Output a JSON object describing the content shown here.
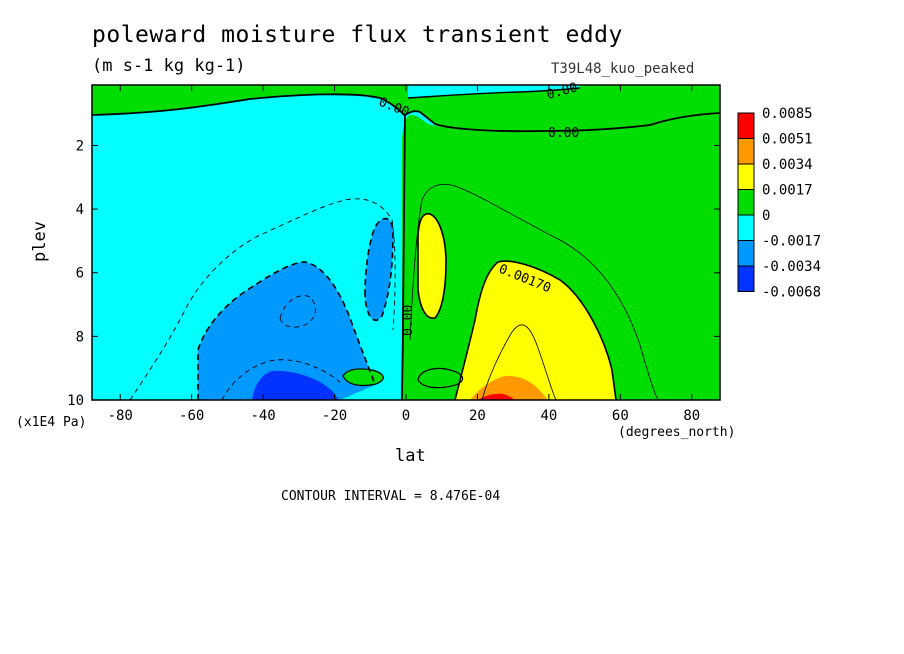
{
  "chart_data": {
    "type": "heatmap",
    "title": "poleward moisture flux transient eddy",
    "subtitle": "(m s-1 kg kg-1)",
    "run_label": "T39L48_kuo_peaked",
    "xlabel": "lat",
    "ylabel": "plev",
    "x_units": "(degrees_north)",
    "y_units": "(x1E4 Pa)",
    "xlim": [
      -87.9,
      87.9
    ],
    "ylim": [
      10,
      0.1
    ],
    "x_ticks": [
      "-80",
      "-60",
      "-40",
      "-20",
      "0",
      "20",
      "40",
      "60",
      "80"
    ],
    "y_ticks": [
      "2",
      "4",
      "6",
      "8",
      "10"
    ],
    "contour_interval_text": "CONTOUR INTERVAL = 8.476E-04",
    "contour_labels": [
      "0.00",
      "0.00",
      "0.00",
      "0.00170",
      "0.00"
    ],
    "colorbar": {
      "labels": [
        "0.0085",
        "0.0051",
        "0.0034",
        "0.0017",
        "0",
        "-0.0017",
        "-0.0034",
        "-0.0068"
      ],
      "colors": [
        "#ff0000",
        "#ff9900",
        "#ffff00",
        "#00dd00",
        "#00ffff",
        "#0099ff",
        "#0033ff"
      ]
    },
    "colors": {
      "green": "#00dd00",
      "cyan": "#00ffff",
      "yellow": "#ffff00",
      "orange": "#ff9900",
      "red": "#ff0000",
      "blue": "#0099ff",
      "dark_blue": "#0033ff"
    }
  }
}
